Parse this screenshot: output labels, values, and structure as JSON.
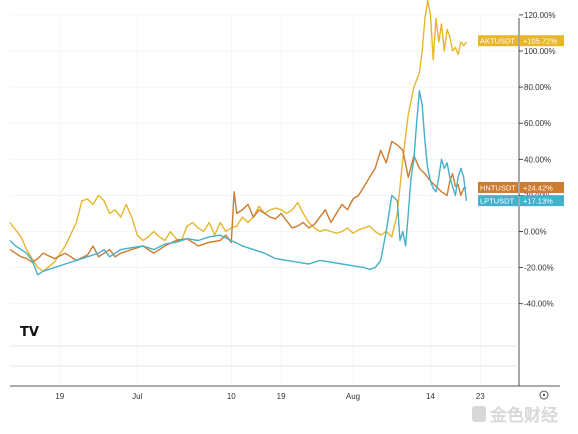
{
  "chart_data": {
    "type": "line",
    "title": "",
    "xlabel": "",
    "ylabel": "",
    "ylim": [
      -40,
      125
    ],
    "y_ticks": [
      "120.00%",
      "100.00%",
      "80.00%",
      "60.00%",
      "40.00%",
      "20.00%",
      "0.00%",
      "-20.00%",
      "-40.00%"
    ],
    "y_tick_values": [
      120,
      100,
      80,
      60,
      40,
      20,
      0,
      -20,
      -40
    ],
    "x_ticks": [
      "19",
      "Jul",
      "10",
      "19",
      "Aug",
      "14",
      "23"
    ],
    "x_tick_positions": [
      9,
      23,
      40,
      49,
      62,
      76,
      85
    ],
    "xlim": [
      0,
      92
    ],
    "grid": true,
    "series": [
      {
        "name": "AKTUSDT",
        "color": "#e8b62b",
        "last_label": "+105.72%",
        "last_value": 105.7,
        "x": [
          0,
          2,
          3,
          4,
          5,
          6,
          8,
          10,
          12,
          13,
          14,
          15,
          16,
          17,
          18,
          19,
          20,
          21,
          22,
          23,
          24,
          25,
          26,
          27,
          28,
          29,
          30,
          31,
          32,
          33,
          34,
          35,
          36,
          37,
          38,
          39,
          40,
          41,
          42,
          43,
          44,
          45,
          46,
          47,
          48,
          49,
          50,
          51,
          52,
          53,
          54,
          55,
          56,
          57,
          58,
          59,
          60,
          61,
          62,
          63,
          64,
          65,
          66,
          67,
          68,
          69,
          70,
          71,
          72,
          73,
          74,
          74.5,
          75,
          75.5,
          76,
          76.5,
          77,
          77.5,
          78,
          78.5,
          79,
          79.5,
          80,
          80.5,
          81,
          81.5,
          82,
          82.5
        ],
        "y": [
          5,
          -3,
          -10,
          -15,
          -20,
          -22,
          -17,
          -8,
          5,
          17,
          18,
          15,
          20,
          17,
          10,
          12,
          8,
          15,
          8,
          -2,
          -5,
          -3,
          0,
          -3,
          -5,
          0,
          -4,
          -5,
          3,
          5,
          2,
          0,
          5,
          -2,
          5,
          0,
          2,
          3,
          8,
          5,
          8,
          14,
          10,
          12,
          13,
          12,
          10,
          12,
          16,
          10,
          5,
          2,
          0,
          1,
          0,
          -1,
          0,
          2,
          -1,
          1,
          2,
          3,
          0,
          -2,
          0,
          -3,
          10,
          40,
          65,
          80,
          88,
          100,
          118,
          128,
          120,
          95,
          118,
          105,
          115,
          100,
          112,
          108,
          100,
          102,
          98,
          105,
          103,
          105
        ]
      },
      {
        "name": "HNTUSDT",
        "color": "#cc7b2f",
        "last_label": "+24.42%",
        "last_value": 24.4,
        "x": [
          0,
          1,
          2,
          3,
          4,
          5,
          6,
          8,
          10,
          12,
          14,
          15,
          16,
          17,
          18,
          19,
          20,
          22,
          24,
          26,
          28,
          30,
          32,
          34,
          36,
          38,
          39,
          40,
          40.5,
          41,
          42,
          43,
          44,
          45,
          46,
          47,
          48,
          49,
          50,
          51,
          52,
          53,
          54,
          55,
          56,
          57,
          58,
          59,
          60,
          61,
          62,
          63,
          64,
          65,
          66,
          67,
          68,
          69,
          70,
          71,
          72,
          73,
          74,
          75,
          76,
          77,
          78,
          79,
          79.5,
          80,
          80.5,
          81,
          81.5,
          82,
          82.5
        ],
        "y": [
          -10,
          -12,
          -14,
          -15,
          -17,
          -15,
          -12,
          -15,
          -12,
          -16,
          -13,
          -8,
          -14,
          -12,
          -10,
          -14,
          -12,
          -10,
          -8,
          -12,
          -8,
          -5,
          -4,
          -8,
          -6,
          -5,
          -2,
          -6,
          22,
          10,
          12,
          15,
          8,
          12,
          10,
          8,
          7,
          10,
          6,
          2,
          3,
          5,
          2,
          4,
          8,
          12,
          5,
          10,
          15,
          12,
          18,
          20,
          25,
          30,
          35,
          45,
          38,
          50,
          48,
          45,
          30,
          42,
          35,
          32,
          28,
          25,
          22,
          20,
          28,
          32,
          25,
          26,
          20,
          24,
          24
        ]
      },
      {
        "name": "LPTUSDT",
        "color": "#45b0cb",
        "last_label": "+17.13%",
        "last_value": 17.1,
        "x": [
          0,
          1,
          2,
          3,
          4,
          5,
          6,
          8,
          10,
          12,
          14,
          16,
          17,
          18,
          19,
          20,
          22,
          24,
          26,
          28,
          30,
          32,
          34,
          36,
          38,
          40,
          42,
          44,
          46,
          48,
          50,
          52,
          54,
          56,
          58,
          60,
          62,
          64,
          65,
          66,
          67,
          68,
          69,
          70,
          70.5,
          71,
          71.5,
          72,
          72.5,
          73,
          73.5,
          74,
          74.5,
          75,
          75.5,
          76,
          76.5,
          77,
          77.5,
          78,
          78.5,
          79,
          79.5,
          80,
          80.5,
          81,
          81.5,
          82,
          82.5
        ],
        "y": [
          -5,
          -8,
          -10,
          -12,
          -16,
          -24,
          -22,
          -20,
          -18,
          -16,
          -14,
          -12,
          -10,
          -14,
          -12,
          -10,
          -9,
          -8,
          -10,
          -7,
          -6,
          -4,
          -5,
          -3,
          -2,
          -5,
          -8,
          -10,
          -12,
          -15,
          -16,
          -17,
          -18,
          -16,
          -17,
          -18,
          -19,
          -20,
          -21,
          -20,
          -16,
          0,
          20,
          17,
          -5,
          0,
          -8,
          10,
          30,
          40,
          60,
          78,
          70,
          50,
          35,
          28,
          24,
          22,
          30,
          40,
          35,
          38,
          30,
          25,
          20,
          30,
          35,
          30,
          17
        ]
      }
    ]
  },
  "watermark": {
    "text": "金色财经"
  },
  "logo": {
    "text": "TV"
  }
}
